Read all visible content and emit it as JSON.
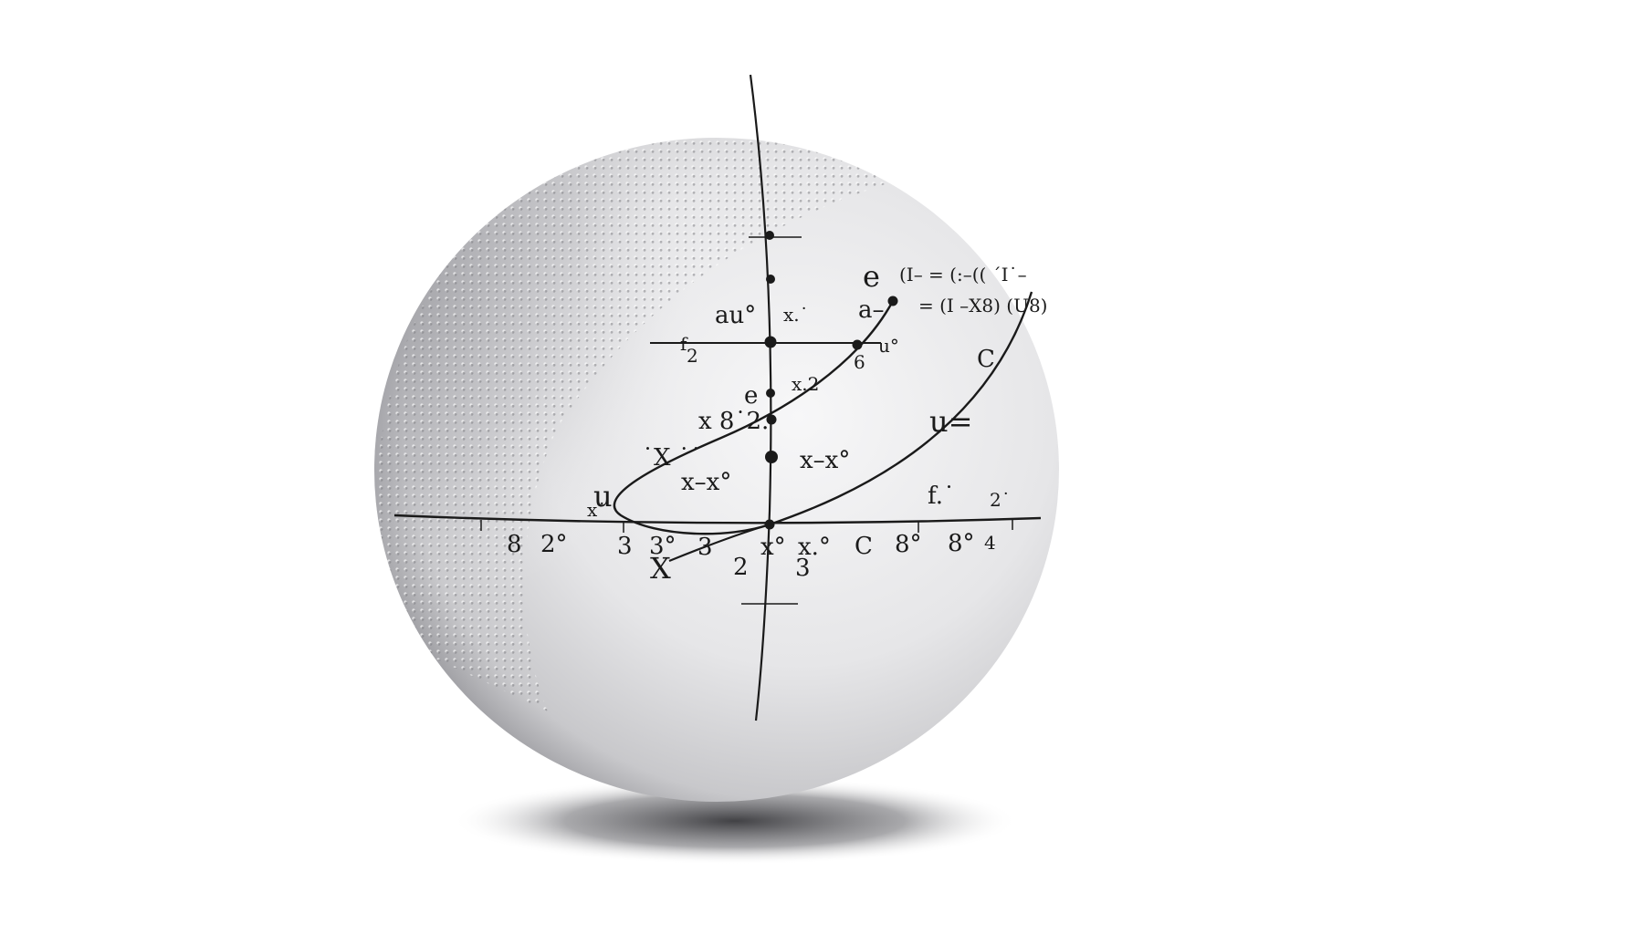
{
  "scene": {
    "subject": "sphere",
    "colors": {
      "background": "#ffffff",
      "sphere_light": "#f2f2f3",
      "sphere_mid": "#d9d9db",
      "sphere_dark": "#9a9a9e",
      "ink": "#1a1a1a",
      "shadow": "#2a2a2e"
    }
  },
  "labels": {
    "au": "au°",
    "xa": "x.˙",
    "a_dash": "a–",
    "e_top": "e",
    "eq1": "(I– = (:–((  ´I˙–",
    "eq2": "= (I –X8) (U8)",
    "f2": "f",
    "f2_sub": "2",
    "u_deg": "u°",
    "six": "6",
    "x2": "x.2",
    "c_right": "C",
    "e_mid": "e",
    "x_62": "x 8˙2.",
    "u_eq": "u=",
    "x_x_top": "x–x°",
    "x_x_left": "x–x°",
    "xx_left": "˙X ˙˙",
    "u_left": "u",
    "x_small_left": "x˙",
    "f_right": "f.˙",
    "two_right": "2˙",
    "tick_8": "8",
    "tick_2o": "2°",
    "tick_3": "3",
    "tick_3o": "3°",
    "tick_3b": "3",
    "tick_x0": "x°",
    "tick_xo": "x.°",
    "tick_c": "C",
    "tick_8o": "8°",
    "tick_8o_b": "8°",
    "tick_4": "4",
    "big_x": "X",
    "below_2": "2",
    "below_3": "3"
  }
}
